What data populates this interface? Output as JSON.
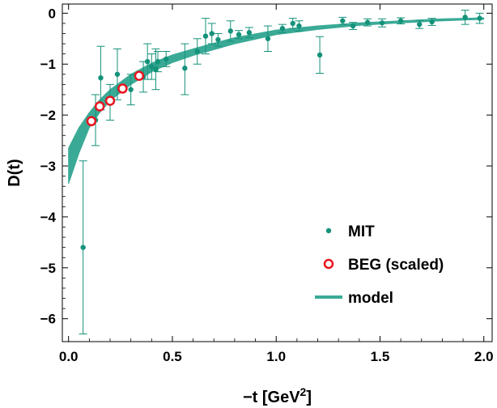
{
  "chart_data": {
    "type": "scatter",
    "xlabel": "−t [GeV",
    "xlabel_sup": "2",
    "xlabel_end": "]",
    "ylabel": "D(t)",
    "xlim": [
      -0.03,
      2.04
    ],
    "ylim": [
      -6.45,
      0.18
    ],
    "xticks": [
      0.0,
      0.5,
      1.0,
      1.5,
      2.0
    ],
    "xtick_labels": [
      "0.0",
      "0.5",
      "1.0",
      "1.5",
      "2.0"
    ],
    "yticks": [
      0,
      -1,
      -2,
      -3,
      -4,
      -5,
      -6
    ],
    "ytick_labels": [
      "0",
      "−1",
      "−2",
      "−3",
      "−4",
      "−5",
      "−6"
    ],
    "grid": false,
    "legend_position": "bottom-right",
    "colors": {
      "mit": "#14927a",
      "beg": "#e8141e",
      "model": "#3aaa96"
    },
    "series": [
      {
        "name": "MIT",
        "kind": "points-with-errorbars",
        "points": [
          {
            "x": 0.07,
            "y": -4.6,
            "lo": -6.3,
            "hi": -2.9
          },
          {
            "x": 0.13,
            "y": -2.1,
            "lo": -2.6,
            "hi": -1.6
          },
          {
            "x": 0.155,
            "y": -1.27,
            "lo": -1.9,
            "hi": -0.65
          },
          {
            "x": 0.2,
            "y": -1.74,
            "lo": -2.1,
            "hi": -1.4
          },
          {
            "x": 0.235,
            "y": -1.2,
            "lo": -1.7,
            "hi": -0.7
          },
          {
            "x": 0.3,
            "y": -1.5,
            "lo": -1.8,
            "hi": -1.2
          },
          {
            "x": 0.36,
            "y": -1.25,
            "lo": -1.55,
            "hi": -0.95
          },
          {
            "x": 0.38,
            "y": -0.95,
            "lo": -1.3,
            "hi": -0.6
          },
          {
            "x": 0.4,
            "y": -1.05,
            "lo": -1.3,
            "hi": -0.8
          },
          {
            "x": 0.42,
            "y": -1.1,
            "lo": -1.5,
            "hi": -0.7
          },
          {
            "x": 0.43,
            "y": -0.95,
            "lo": -1.15,
            "hi": -0.75
          },
          {
            "x": 0.47,
            "y": -0.9,
            "lo": -1.05,
            "hi": -0.75
          },
          {
            "x": 0.56,
            "y": -1.08,
            "lo": -1.6,
            "hi": -0.6
          },
          {
            "x": 0.62,
            "y": -0.75,
            "lo": -1.0,
            "hi": -0.5
          },
          {
            "x": 0.66,
            "y": -0.45,
            "lo": -0.8,
            "hi": -0.1
          },
          {
            "x": 0.69,
            "y": -0.4,
            "lo": -0.6,
            "hi": -0.2
          },
          {
            "x": 0.72,
            "y": -0.52,
            "lo": -0.65,
            "hi": -0.4
          },
          {
            "x": 0.78,
            "y": -0.35,
            "lo": -0.55,
            "hi": -0.15
          },
          {
            "x": 0.82,
            "y": -0.42,
            "lo": -0.5,
            "hi": -0.34
          },
          {
            "x": 0.87,
            "y": -0.38,
            "lo": -0.48,
            "hi": -0.28
          },
          {
            "x": 0.96,
            "y": -0.5,
            "lo": -0.75,
            "hi": -0.25
          },
          {
            "x": 1.03,
            "y": -0.3,
            "lo": -0.38,
            "hi": -0.22
          },
          {
            "x": 1.08,
            "y": -0.2,
            "lo": -0.3,
            "hi": -0.1
          },
          {
            "x": 1.11,
            "y": -0.25,
            "lo": -0.35,
            "hi": -0.15
          },
          {
            "x": 1.21,
            "y": -0.82,
            "lo": -1.18,
            "hi": -0.46
          },
          {
            "x": 1.32,
            "y": -0.15,
            "lo": -0.22,
            "hi": -0.08
          },
          {
            "x": 1.37,
            "y": -0.25,
            "lo": -0.32,
            "hi": -0.18
          },
          {
            "x": 1.44,
            "y": -0.18,
            "lo": -0.25,
            "hi": -0.11
          },
          {
            "x": 1.51,
            "y": -0.19,
            "lo": -0.27,
            "hi": -0.11
          },
          {
            "x": 1.6,
            "y": -0.15,
            "lo": -0.21,
            "hi": -0.09
          },
          {
            "x": 1.69,
            "y": -0.22,
            "lo": -0.3,
            "hi": -0.14
          },
          {
            "x": 1.75,
            "y": -0.17,
            "lo": -0.24,
            "hi": -0.1
          },
          {
            "x": 1.91,
            "y": -0.08,
            "lo": -0.22,
            "hi": 0.06
          },
          {
            "x": 1.98,
            "y": -0.1,
            "lo": -0.2,
            "hi": 0.0
          }
        ]
      },
      {
        "name": "BEG (scaled)",
        "kind": "open-circles",
        "points": [
          {
            "x": 0.11,
            "y": -2.12
          },
          {
            "x": 0.15,
            "y": -1.83
          },
          {
            "x": 0.2,
            "y": -1.72
          },
          {
            "x": 0.26,
            "y": -1.48
          },
          {
            "x": 0.34,
            "y": -1.23
          }
        ]
      },
      {
        "name": "model",
        "kind": "band",
        "x": [
          0.0,
          0.05,
          0.1,
          0.15,
          0.2,
          0.3,
          0.4,
          0.5,
          0.6,
          0.8,
          1.0,
          1.2,
          1.4,
          1.6,
          1.8,
          2.0
        ],
        "lower": [
          -3.35,
          -2.75,
          -2.25,
          -1.95,
          -1.72,
          -1.4,
          -1.15,
          -0.97,
          -0.83,
          -0.6,
          -0.42,
          -0.32,
          -0.24,
          -0.19,
          -0.15,
          -0.12
        ],
        "upper": [
          -2.65,
          -2.25,
          -1.95,
          -1.7,
          -1.5,
          -1.2,
          -0.98,
          -0.82,
          -0.7,
          -0.48,
          -0.33,
          -0.25,
          -0.19,
          -0.15,
          -0.11,
          -0.09
        ]
      }
    ]
  }
}
